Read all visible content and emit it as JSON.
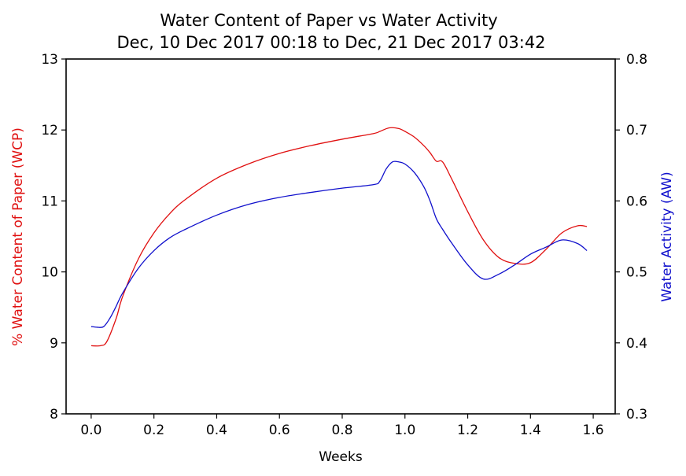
{
  "chart_data": {
    "type": "line",
    "title": "Water Content of Paper vs Water Activity",
    "subtitle": "Dec, 10 Dec 2017 00:18 to Dec, 21 Dec 2017 03:42",
    "xlabel": "Weeks",
    "ylabel_left": "% Water Content of Paper (WCP)",
    "ylabel_right": "Water Activity (AW)",
    "xlim": [
      -0.08,
      1.67
    ],
    "ylim_left": [
      8,
      13
    ],
    "ylim_right": [
      0.3,
      0.8
    ],
    "x_ticks": [
      "0.0",
      "0.2",
      "0.4",
      "0.6",
      "0.8",
      "1.0",
      "1.2",
      "1.4",
      "1.6"
    ],
    "y_left_ticks": [
      "8",
      "9",
      "10",
      "11",
      "12",
      "13"
    ],
    "y_right_ticks": [
      "0.3",
      "0.4",
      "0.5",
      "0.6",
      "0.7",
      "0.8"
    ],
    "grid": false,
    "series": [
      {
        "axis": "left",
        "color": "#e01010",
        "x": [
          0.0,
          0.03,
          0.05,
          0.08,
          0.1,
          0.15,
          0.2,
          0.25,
          0.3,
          0.4,
          0.5,
          0.6,
          0.7,
          0.8,
          0.9,
          0.92,
          0.95,
          0.98,
          1.0,
          1.03,
          1.06,
          1.08,
          1.1,
          1.12,
          1.15,
          1.2,
          1.25,
          1.3,
          1.35,
          1.4,
          1.45,
          1.5,
          1.55,
          1.58
        ],
        "values": [
          8.96,
          8.96,
          9.02,
          9.35,
          9.65,
          10.18,
          10.55,
          10.82,
          11.02,
          11.32,
          11.52,
          11.67,
          11.78,
          11.87,
          11.95,
          11.98,
          12.03,
          12.02,
          11.98,
          11.9,
          11.78,
          11.68,
          11.56,
          11.55,
          11.3,
          10.85,
          10.45,
          10.2,
          10.12,
          10.13,
          10.32,
          10.55,
          10.65,
          10.64
        ]
      },
      {
        "axis": "right",
        "color": "#1010cc",
        "x": [
          0.0,
          0.02,
          0.04,
          0.06,
          0.08,
          0.1,
          0.15,
          0.2,
          0.25,
          0.3,
          0.4,
          0.5,
          0.6,
          0.7,
          0.8,
          0.9,
          0.92,
          0.94,
          0.96,
          0.98,
          1.0,
          1.03,
          1.06,
          1.08,
          1.1,
          1.12,
          1.15,
          1.2,
          1.25,
          1.3,
          1.35,
          1.4,
          1.45,
          1.5,
          1.55,
          1.58
        ],
        "values": [
          0.423,
          0.422,
          0.423,
          0.435,
          0.452,
          0.47,
          0.505,
          0.53,
          0.548,
          0.56,
          0.58,
          0.595,
          0.605,
          0.612,
          0.618,
          0.623,
          0.628,
          0.645,
          0.655,
          0.655,
          0.652,
          0.64,
          0.62,
          0.6,
          0.575,
          0.56,
          0.54,
          0.51,
          0.49,
          0.497,
          0.51,
          0.525,
          0.535,
          0.545,
          0.54,
          0.53
        ]
      }
    ]
  }
}
